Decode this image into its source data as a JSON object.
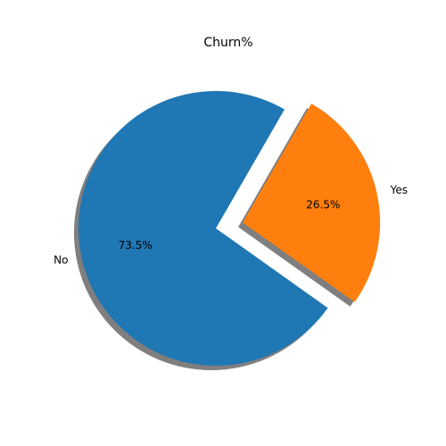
{
  "chart_data": {
    "type": "pie",
    "title": "Churn%",
    "slices": [
      {
        "label": "No",
        "value": 73.5,
        "pct_label": "73.5%",
        "color": "#1f77b4",
        "explode": 0
      },
      {
        "label": "Yes",
        "value": 26.5,
        "pct_label": "26.5%",
        "color": "#ff7f0e",
        "explode": 0.2
      }
    ],
    "start_angle_deg": 60,
    "shadow": true,
    "shadow_color": "#7f7f7f"
  }
}
